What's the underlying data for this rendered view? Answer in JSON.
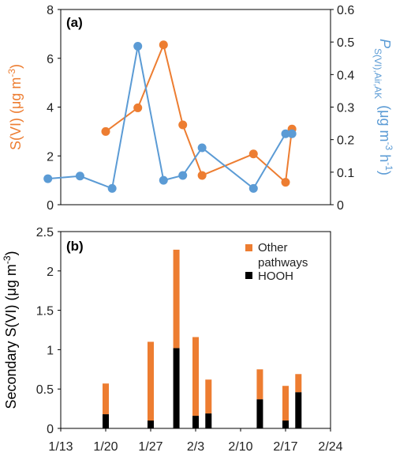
{
  "colors": {
    "s6": "#ED7D31",
    "flux": "#5B9BD5",
    "other": "#ED7D31",
    "hooh": "#000000",
    "axis": "#000000"
  },
  "chart_data": [
    {
      "type": "line",
      "panel_label": "(a)",
      "ylabel_left": "S(VI) (μg m⁻³)",
      "ylabel_right": "P_{S(VI),Air,AK} (μg m⁻³ h⁻¹)",
      "ylim_left": [
        0,
        8
      ],
      "yticks_left": [
        "0",
        "2",
        "4",
        "6",
        "8"
      ],
      "ylim_right": [
        0,
        0.6
      ],
      "yticks_right": [
        "0",
        "0.1",
        "0.2",
        "0.3",
        "0.4",
        "0.5",
        "0.6"
      ],
      "xlim": [
        0,
        42
      ],
      "grid": false,
      "series": [
        {
          "axis": "left",
          "color": "#ED7D31",
          "x": [
            7,
            12,
            16,
            19,
            22,
            30,
            35,
            36
          ],
          "y": [
            3.0,
            3.97,
            6.55,
            3.27,
            1.2,
            2.08,
            0.92,
            3.1
          ]
        },
        {
          "axis": "right",
          "color": "#5B9BD5",
          "x": [
            -2,
            3,
            8,
            12,
            16,
            19,
            22,
            30,
            35,
            36
          ],
          "y": [
            0.08,
            0.088,
            0.05,
            0.487,
            0.075,
            0.09,
            0.175,
            0.05,
            0.218,
            0.218
          ]
        }
      ]
    },
    {
      "type": "bar",
      "stacked": true,
      "panel_label": "(b)",
      "ylabel": "Secondary S(VI) (μg m⁻³)",
      "ylim": [
        0,
        2.5
      ],
      "yticks": [
        "0",
        "0.5",
        "1",
        "1.5",
        "2",
        "2.5"
      ],
      "xticks": [
        "1/13",
        "1/20",
        "1/27",
        "2/3",
        "2/10",
        "2/17",
        "2/24"
      ],
      "grid": false,
      "legend": [
        "Other pathways",
        "HOOH"
      ],
      "series": [
        {
          "name": "HOOH",
          "color": "#000000",
          "values": [
            0.18,
            0.1,
            1.02,
            0.16,
            0.19,
            0.37,
            0.1,
            0.46
          ]
        },
        {
          "name": "Other pathways",
          "color": "#ED7D31",
          "values": [
            0.39,
            1.0,
            1.25,
            1.0,
            0.43,
            0.38,
            0.44,
            0.23
          ]
        }
      ],
      "totals": [
        0.57,
        1.1,
        2.27,
        1.16,
        0.62,
        0.75,
        0.54,
        0.69
      ],
      "x": [
        7,
        14,
        18,
        21,
        23,
        31,
        35,
        37
      ]
    }
  ]
}
